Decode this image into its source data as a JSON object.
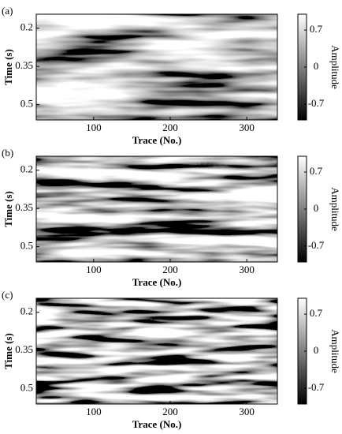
{
  "chart_data": [
    {
      "type": "heatmap",
      "panel_label": "(a)",
      "xlabel": "Trace (No.)",
      "ylabel": "Time (s)",
      "xlim": [
        25,
        340
      ],
      "xticks": [
        100,
        200,
        300
      ],
      "ylim": [
        0.145,
        0.56
      ],
      "y_inverted": true,
      "yticks": [
        0.2,
        0.35,
        0.5
      ],
      "colorbar_label": "Amplitude",
      "clim": [
        -1,
        1
      ],
      "cticks": [
        0.7,
        0,
        -0.7
      ],
      "colormap": [
        "#000000",
        "#ffffff"
      ]
    },
    {
      "type": "heatmap",
      "panel_label": "(b)",
      "xlabel": "Trace (No.)",
      "ylabel": "Time (s)",
      "xlim": [
        25,
        340
      ],
      "xticks": [
        100,
        200,
        300
      ],
      "ylim": [
        0.145,
        0.56
      ],
      "y_inverted": true,
      "yticks": [
        0.2,
        0.35,
        0.5
      ],
      "colorbar_label": "Amplitude",
      "clim": [
        -1,
        1
      ],
      "cticks": [
        0.7,
        0,
        -0.7
      ],
      "colormap": [
        "#000000",
        "#ffffff"
      ]
    },
    {
      "type": "heatmap",
      "panel_label": "(c)",
      "xlabel": "Trace (No.)",
      "ylabel": "Time (s)",
      "xlim": [
        25,
        340
      ],
      "xticks": [
        100,
        200,
        300
      ],
      "ylim": [
        0.145,
        0.56
      ],
      "y_inverted": true,
      "yticks": [
        0.2,
        0.35,
        0.5
      ],
      "colorbar_label": "Amplitude",
      "clim": [
        -1,
        1
      ],
      "cticks": [
        0.7,
        0,
        -0.7
      ],
      "colormap": [
        "#000000",
        "#ffffff"
      ]
    }
  ]
}
